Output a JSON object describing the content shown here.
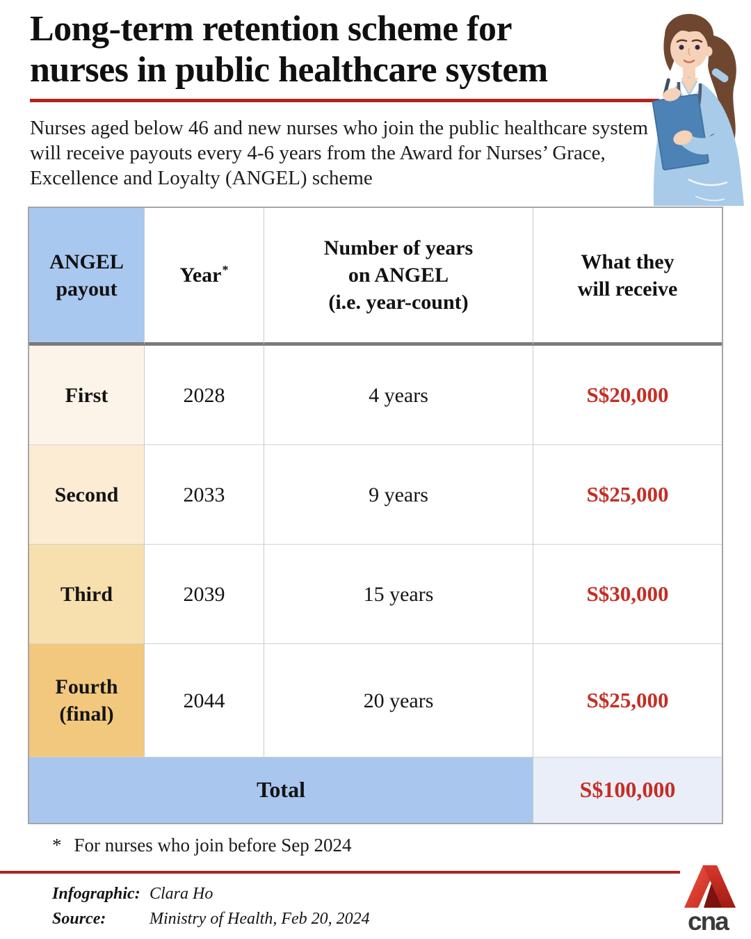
{
  "header": {
    "title_line1": "Long-term retention scheme for",
    "title_line2": "nurses in public healthcare system",
    "subtitle": "Nurses aged below 46 and new nurses who join the public healthcare system will receive payouts every 4-6 years from the Award for Nurses’ Grace, Excellence and Loyalty (ANGEL) scheme"
  },
  "table": {
    "columns": [
      {
        "id": "payout",
        "lines": [
          "ANGEL",
          "payout"
        ],
        "sup": ""
      },
      {
        "id": "year",
        "lines": [
          "Year"
        ],
        "sup": "*"
      },
      {
        "id": "years-on-angel",
        "lines": [
          "Number of years",
          "on ANGEL",
          "(i.e. year-count)"
        ],
        "sup": ""
      },
      {
        "id": "receive",
        "lines": [
          "What they",
          "will receive"
        ],
        "sup": ""
      }
    ],
    "rows": [
      {
        "payout": "First",
        "year": "2028",
        "years_on_angel": "4 years",
        "amount": "S$20,000",
        "payout_bg": "#fdf4e9"
      },
      {
        "payout": "Second",
        "year": "2033",
        "years_on_angel": "9 years",
        "amount": "S$25,000",
        "payout_bg": "#fbecd3"
      },
      {
        "payout": "Third",
        "year": "2039",
        "years_on_angel": "15 years",
        "amount": "S$30,000",
        "payout_bg": "#f7dfae"
      },
      {
        "payout": "Fourth (final)",
        "year": "2044",
        "years_on_angel": "20 years",
        "amount": "S$25,000",
        "payout_bg": "#f2c87e"
      }
    ],
    "total_label": "Total",
    "total_amount": "S$100,000"
  },
  "chart_data": {
    "type": "table",
    "title": "Long-term retention scheme for nurses in public healthcare system",
    "columns": [
      "ANGEL payout",
      "Year*",
      "Number of years on ANGEL (i.e. year-count)",
      "What they will receive"
    ],
    "rows": [
      [
        "First",
        "2028",
        "4 years",
        "S$20,000"
      ],
      [
        "Second",
        "2033",
        "9 years",
        "S$25,000"
      ],
      [
        "Third",
        "2039",
        "15 years",
        "S$30,000"
      ],
      [
        "Fourth (final)",
        "2044",
        "20 years",
        "S$25,000"
      ]
    ],
    "total_row": [
      "Total",
      "S$100,000"
    ]
  },
  "footnote": {
    "marker": "*",
    "text": "For nurses who join before Sep 2024"
  },
  "footer": {
    "infographic_label": "Infographic:",
    "infographic_value": "Clara Ho",
    "source_label": "Source:",
    "source_value": "Ministry of Health, Feb 20, 2024"
  },
  "logo": {
    "wordmark": "cna"
  },
  "colors": {
    "rule_red": "#b0241d",
    "amount_red": "#c42e24",
    "header_blue": "#a9c8f0",
    "total_blue": "#a9c6ee",
    "total_amount_bg": "#e9eef8",
    "row_tints": [
      "#fdf4e9",
      "#fbecd3",
      "#f7dfae",
      "#f2c87e"
    ],
    "logo_red": "#d8382b",
    "logo_dark_red": "#7c130d",
    "logo_text": "#3a3a3a"
  }
}
